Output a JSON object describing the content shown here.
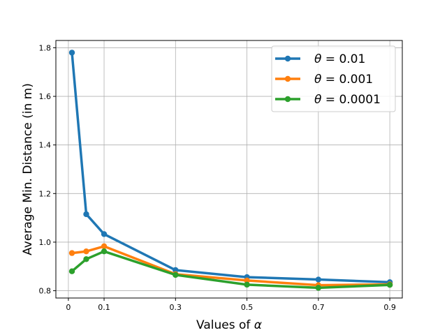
{
  "chart_data": {
    "type": "line",
    "title": "",
    "xlabel_text": "Values of ",
    "xlabel_symbol": "α",
    "ylabel": "Average Min. Distance (in m)",
    "xlim": [
      -0.035,
      0.935
    ],
    "ylim": [
      0.77,
      1.83
    ],
    "xticks": [
      0,
      0.1,
      0.3,
      0.5,
      0.7,
      0.9
    ],
    "xtick_labels": [
      "0",
      "0.1",
      "0.3",
      "0.5",
      "0.7",
      "0.9"
    ],
    "yticks": [
      0.8,
      1.0,
      1.2,
      1.4,
      1.6,
      1.8
    ],
    "ytick_labels": [
      "0.8",
      "1.0",
      "1.2",
      "1.4",
      "1.6",
      "1.8"
    ],
    "grid": true,
    "legend_position": "top-right",
    "x": [
      0.01,
      0.05,
      0.1,
      0.3,
      0.5,
      0.7,
      0.9
    ],
    "series": [
      {
        "name_symbol": "θ",
        "name_rest": " = 0.01",
        "color": "#1f77b4",
        "values": [
          1.78,
          1.115,
          1.033,
          0.885,
          0.856,
          0.846,
          0.835
        ]
      },
      {
        "name_symbol": "θ",
        "name_rest": " = 0.001",
        "color": "#ff7f0e",
        "values": [
          0.955,
          0.962,
          0.983,
          0.868,
          0.842,
          0.823,
          0.826
        ]
      },
      {
        "name_symbol": "θ",
        "name_rest": " = 0.0001",
        "color": "#2ca02c",
        "values": [
          0.88,
          0.93,
          0.962,
          0.865,
          0.825,
          0.812,
          0.824
        ]
      }
    ]
  }
}
